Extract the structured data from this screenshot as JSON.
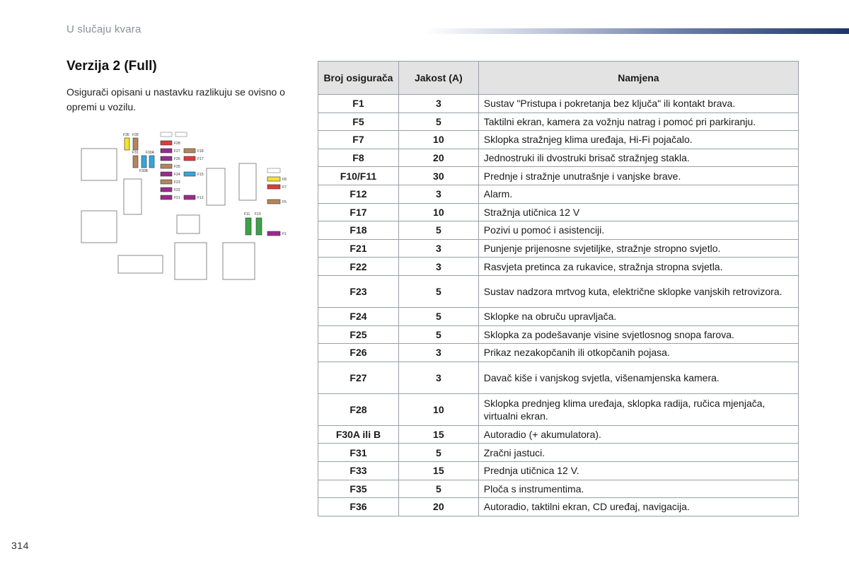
{
  "header": {
    "section": "U slučaju kvara"
  },
  "title": "Verzija 2 (Full)",
  "intro": "Osigurači opisani u nastavku razlikuju se ovisno o opremi u vozilu.",
  "page_number": "314",
  "colors": {
    "header_bar": "#1e3566",
    "table_header_bg": "#e3e3e3"
  },
  "diagram": {
    "labels": {
      "F36": "F36",
      "F35": "F35",
      "F31": "F31",
      "F30A": "F30A",
      "F30B": "F30B",
      "F28": "F28",
      "F27": "F27",
      "F26": "F26",
      "F25": "F25",
      "F24": "F24",
      "F23": "F23",
      "F22": "F22",
      "F21": "F21",
      "F18": "F18",
      "F17": "F17",
      "F15": "F15",
      "F12": "F12",
      "F8": "F8",
      "F7": "F7",
      "F5": "F5",
      "F11": "F11",
      "F10": "F10",
      "F1": "F1"
    }
  },
  "table": {
    "headers": [
      "Broj osigurača",
      "Jakost (A)",
      "Namjena"
    ],
    "rows": [
      {
        "fuse": "F1",
        "amp": "3",
        "use": "Sustav \"Pristupa i pokretanja bez ključa\" ili kontakt brava."
      },
      {
        "fuse": "F5",
        "amp": "5",
        "use": "Taktilni ekran, kamera za vožnju natrag i pomoć pri parkiranju."
      },
      {
        "fuse": "F7",
        "amp": "10",
        "use": "Sklopka stražnjeg klima uređaja, Hi-Fi pojačalo."
      },
      {
        "fuse": "F8",
        "amp": "20",
        "use": "Jednostruki ili dvostruki brisač stražnjeg stakla."
      },
      {
        "fuse": "F10/F11",
        "amp": "30",
        "use": "Prednje i stražnje unutrašnje i vanjske brave."
      },
      {
        "fuse": "F12",
        "amp": "3",
        "use": "Alarm."
      },
      {
        "fuse": "F17",
        "amp": "10",
        "use": "Stražnja utičnica 12 V"
      },
      {
        "fuse": "F18",
        "amp": "5",
        "use": "Pozivi u pomoć i asistenciji."
      },
      {
        "fuse": "F21",
        "amp": "3",
        "use": "Punjenje prijenosne svjetiljke, stražnje stropno svjetlo."
      },
      {
        "fuse": "F22",
        "amp": "3",
        "use": "Rasvjeta pretinca za rukavice, stražnja stropna svjetla."
      },
      {
        "fuse": "F23",
        "amp": "5",
        "use": "Sustav nadzora mrtvog kuta, električne sklopke vanjskih retrovizora."
      },
      {
        "fuse": "F24",
        "amp": "5",
        "use": "Sklopke na obruču upravljača."
      },
      {
        "fuse": "F25",
        "amp": "5",
        "use": "Sklopka za podešavanje visine svjetlosnog snopa farova."
      },
      {
        "fuse": "F26",
        "amp": "3",
        "use": "Prikaz nezakopčanih ili otkopčanih pojasa."
      },
      {
        "fuse": "F27",
        "amp": "3",
        "use": "Davač kiše i vanjskog svjetla, višenamjenska kamera."
      },
      {
        "fuse": "F28",
        "amp": "10",
        "use": "Sklopka prednjeg klima uređaja, sklopka radija, ručica mjenjača, virtualni ekran."
      },
      {
        "fuse": "F30A ili B",
        "amp": "15",
        "use": "Autoradio (+ akumulatora)."
      },
      {
        "fuse": "F31",
        "amp": "5",
        "use": "Zračni jastuci."
      },
      {
        "fuse": "F33",
        "amp": "15",
        "use": "Prednja utičnica 12 V."
      },
      {
        "fuse": "F35",
        "amp": "5",
        "use": "Ploča s instrumentima."
      },
      {
        "fuse": "F36",
        "amp": "20",
        "use": "Autoradio, taktilni ekran, CD uređaj, navigacija."
      }
    ]
  }
}
